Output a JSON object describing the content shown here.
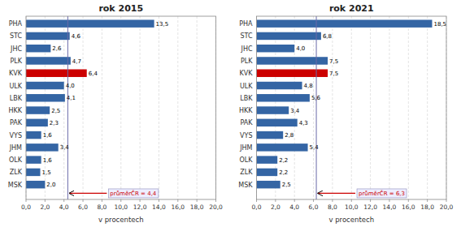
{
  "chart_data": [
    {
      "type": "bar",
      "orientation": "horizontal",
      "title": "rok 2015",
      "x_label": "v procentech",
      "categories": [
        "PHA",
        "STC",
        "JHC",
        "PLK",
        "KVK",
        "ULK",
        "LBK",
        "HKK",
        "PAK",
        "VYS",
        "JHM",
        "OLK",
        "ZLK",
        "MSK"
      ],
      "values": [
        13.5,
        4.6,
        2.6,
        4.7,
        6.4,
        4.0,
        4.1,
        2.5,
        2.3,
        1.6,
        3.4,
        1.6,
        1.5,
        2.0
      ],
      "value_labels": [
        "13,5",
        "4,6",
        "2,6",
        "4,7",
        "6,4",
        "4,0",
        "4,1",
        "2,5",
        "2,3",
        "1,6",
        "3,4",
        "1,6",
        "1,5",
        "2,0"
      ],
      "data_labels": true,
      "colors": [
        "#3465A4",
        "#3465A4",
        "#3465A4",
        "#3465A4",
        "#CC0000",
        "#3465A4",
        "#3465A4",
        "#3465A4",
        "#3465A4",
        "#3465A4",
        "#3465A4",
        "#3465A4",
        "#3465A4",
        "#3465A4"
      ],
      "xlim": [
        0,
        20.0
      ],
      "xticks": [
        {
          "value": 0.0,
          "label": "0,0"
        },
        {
          "value": 2.0,
          "label": "2,0"
        },
        {
          "value": 4.0,
          "label": "4,0"
        },
        {
          "value": 6.0,
          "label": "6,0"
        },
        {
          "value": 8.0,
          "label": "8,0"
        },
        {
          "value": 10.0,
          "label": "10,0"
        },
        {
          "value": 12.0,
          "label": "12,0"
        },
        {
          "value": 14.0,
          "label": "14,0"
        },
        {
          "value": 16.0,
          "label": "16,0"
        },
        {
          "value": 18.0,
          "label": "18,0"
        },
        {
          "value": 20.0,
          "label": "20,0"
        }
      ],
      "grid": true,
      "annotations": [
        {
          "label": "průměrČR = 4,4",
          "value": 4.4,
          "color": "#CC0000"
        }
      ]
    },
    {
      "type": "bar",
      "orientation": "horizontal",
      "title": "rok 2021",
      "x_label": "v procentech",
      "categories": [
        "PHA",
        "STC",
        "JHC",
        "PLK",
        "KVK",
        "ULK",
        "LBK",
        "HKK",
        "PAK",
        "VYS",
        "JHM",
        "OLK",
        "ZLK",
        "MSK"
      ],
      "values": [
        18.5,
        6.8,
        4.0,
        7.5,
        7.5,
        4.8,
        5.6,
        3.4,
        4.3,
        2.8,
        5.4,
        2.2,
        2.2,
        2.5
      ],
      "value_labels": [
        "18,5",
        "6,8",
        "4,0",
        "7,5",
        "7,5",
        "4,8",
        "5,6",
        "3,4",
        "4,3",
        "2,8",
        "5,4",
        "2,2",
        "2,2",
        "2,5"
      ],
      "data_labels": true,
      "colors": [
        "#3465A4",
        "#3465A4",
        "#3465A4",
        "#3465A4",
        "#CC0000",
        "#3465A4",
        "#3465A4",
        "#3465A4",
        "#3465A4",
        "#3465A4",
        "#3465A4",
        "#3465A4",
        "#3465A4",
        "#3465A4"
      ],
      "xlim": [
        0,
        20.0
      ],
      "xticks": [
        {
          "value": 0.0,
          "label": "0,0"
        },
        {
          "value": 2.0,
          "label": "2,0"
        },
        {
          "value": 4.0,
          "label": "4,0"
        },
        {
          "value": 6.0,
          "label": "6,0"
        },
        {
          "value": 8.0,
          "label": "8,0"
        },
        {
          "value": 10.0,
          "label": "10,0"
        },
        {
          "value": 12.0,
          "label": "12,0"
        },
        {
          "value": 14.0,
          "label": "14,0"
        },
        {
          "value": 16.0,
          "label": "16,0"
        },
        {
          "value": 18.0,
          "label": "18,0"
        },
        {
          "value": 20.0,
          "label": "20,0"
        }
      ],
      "grid": true,
      "annotations": [
        {
          "label": "průměrČR = 6,3",
          "value": 6.3,
          "color": "#CC0000"
        }
      ]
    }
  ]
}
